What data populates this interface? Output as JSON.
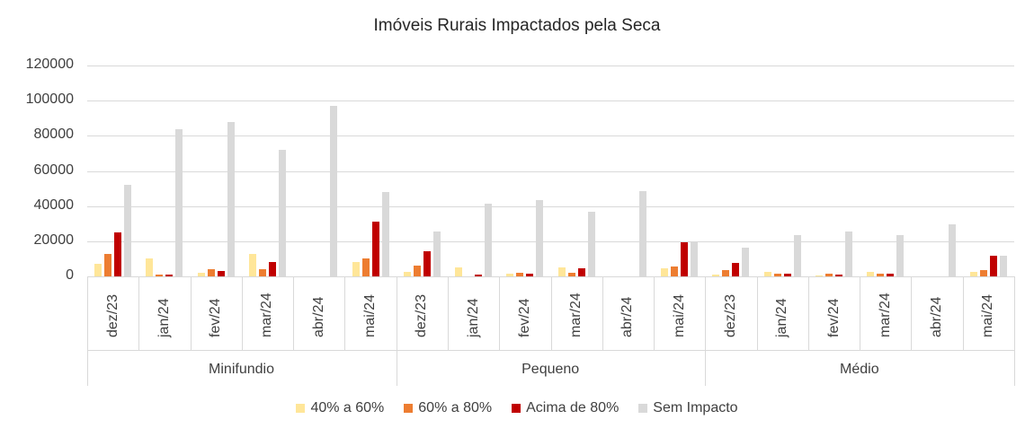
{
  "chart_data": {
    "type": "bar",
    "title": "Imóveis Rurais Impactados pela Seca",
    "xlabel": "",
    "ylabel": "",
    "ylim": [
      0,
      120000
    ],
    "yticks": [
      "0",
      "20000",
      "40000",
      "60000",
      "80000",
      "100000",
      "120000"
    ],
    "grid": true,
    "legend_position": "bottom",
    "groups": [
      {
        "name": "Minifundio",
        "categories": [
          "dez/23",
          "jan/24",
          "fev/24",
          "mar/24",
          "abr/24",
          "mai/24"
        ]
      },
      {
        "name": "Pequeno",
        "categories": [
          "dez/23",
          "jan/24",
          "fev/24",
          "mar/24",
          "abr/24",
          "mai/24"
        ]
      },
      {
        "name": "Médio",
        "categories": [
          "dez/23",
          "jan/24",
          "fev/24",
          "mar/24",
          "abr/24",
          "mai/24"
        ]
      }
    ],
    "categories": [
      "Minifundio dez/23",
      "Minifundio jan/24",
      "Minifundio fev/24",
      "Minifundio mar/24",
      "Minifundio abr/24",
      "Minifundio mai/24",
      "Pequeno dez/23",
      "Pequeno jan/24",
      "Pequeno fev/24",
      "Pequeno mar/24",
      "Pequeno abr/24",
      "Pequeno mai/24",
      "Médio dez/23",
      "Médio jan/24",
      "Médio fev/24",
      "Médio mar/24",
      "Médio abr/24",
      "Médio mai/24"
    ],
    "series": [
      {
        "name": "40% a 60%",
        "color": "#FFE699",
        "values": [
          7000,
          10200,
          2000,
          12800,
          0,
          8200,
          2800,
          5000,
          1300,
          5000,
          0,
          4500,
          1000,
          2800,
          500,
          2500,
          0,
          2500
        ]
      },
      {
        "name": "60% a 80%",
        "color": "#ED7D31",
        "values": [
          12800,
          1000,
          4000,
          4000,
          0,
          10200,
          6000,
          0,
          2000,
          1800,
          0,
          5500,
          3800,
          1300,
          1300,
          1300,
          0,
          3500
        ]
      },
      {
        "name": "Acima de 80%",
        "color": "#C00000",
        "values": [
          25000,
          1200,
          3000,
          8200,
          0,
          31200,
          14300,
          1000,
          1500,
          4500,
          0,
          19300,
          7500,
          1300,
          800,
          1300,
          0,
          11800
        ]
      },
      {
        "name": "Sem Impacto",
        "color": "#D9D9D9",
        "values": [
          52000,
          83800,
          88000,
          72000,
          97000,
          48000,
          25500,
          41500,
          43500,
          36800,
          48500,
          20000,
          16300,
          23300,
          25500,
          23300,
          29500,
          11800
        ]
      }
    ]
  },
  "legend": {
    "items": [
      {
        "label": "40% a 60%",
        "color": "#FFE699"
      },
      {
        "label": "60% a 80%",
        "color": "#ED7D31"
      },
      {
        "label": "Acima de 80%",
        "color": "#C00000"
      },
      {
        "label": "Sem Impacto",
        "color": "#D9D9D9"
      }
    ]
  }
}
